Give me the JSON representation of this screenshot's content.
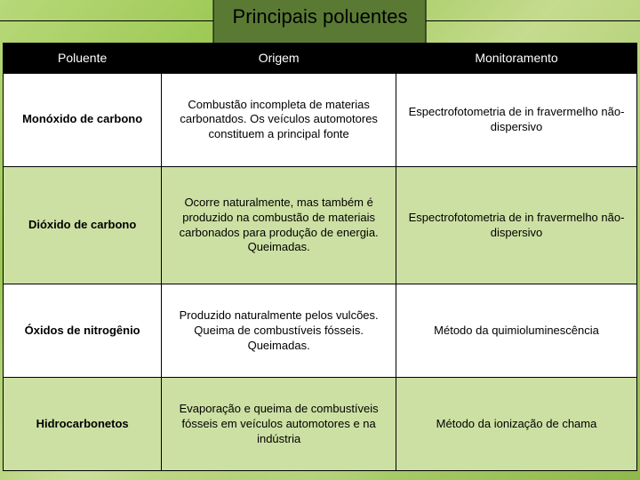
{
  "title": "Principais poluentes",
  "columns": [
    "Poluente",
    "Origem",
    "Monitoramento"
  ],
  "rows": [
    {
      "poluente": "Monóxido de carbono",
      "origem": "Combustão incompleta de materias carbonatdos. Os veículos automotores constituem a principal fonte",
      "monitoramento": "Espectrofotometria de in fravermelho não-dispersivo",
      "row_bg": "#ffffff"
    },
    {
      "poluente": "Dióxido de carbono",
      "origem": "Ocorre naturalmente, mas também é produzido na combustão de materiais carbonados para produção de energia. Queimadas.",
      "monitoramento": "Espectrofotometria de in fravermelho não-dispersivo",
      "row_bg": "#cde0a3"
    },
    {
      "poluente": "Óxidos de nitrogênio",
      "origem": "Produzido naturalmente pelos vulcões. Queima de combustíveis fósseis. Queimadas.",
      "monitoramento": "Método da quimioluminescência",
      "row_bg": "#ffffff"
    },
    {
      "poluente": "Hidrocarbonetos",
      "origem": "Evaporação e queima de combustíveis fósseis em veículos automotores e na indústria",
      "monitoramento": "Método da ionização de chama",
      "row_bg": "#cde0a3"
    }
  ],
  "colors": {
    "header_bg": "#000000",
    "header_text": "#ffffff",
    "border": "#000000",
    "title_box": "#5a7a34"
  }
}
